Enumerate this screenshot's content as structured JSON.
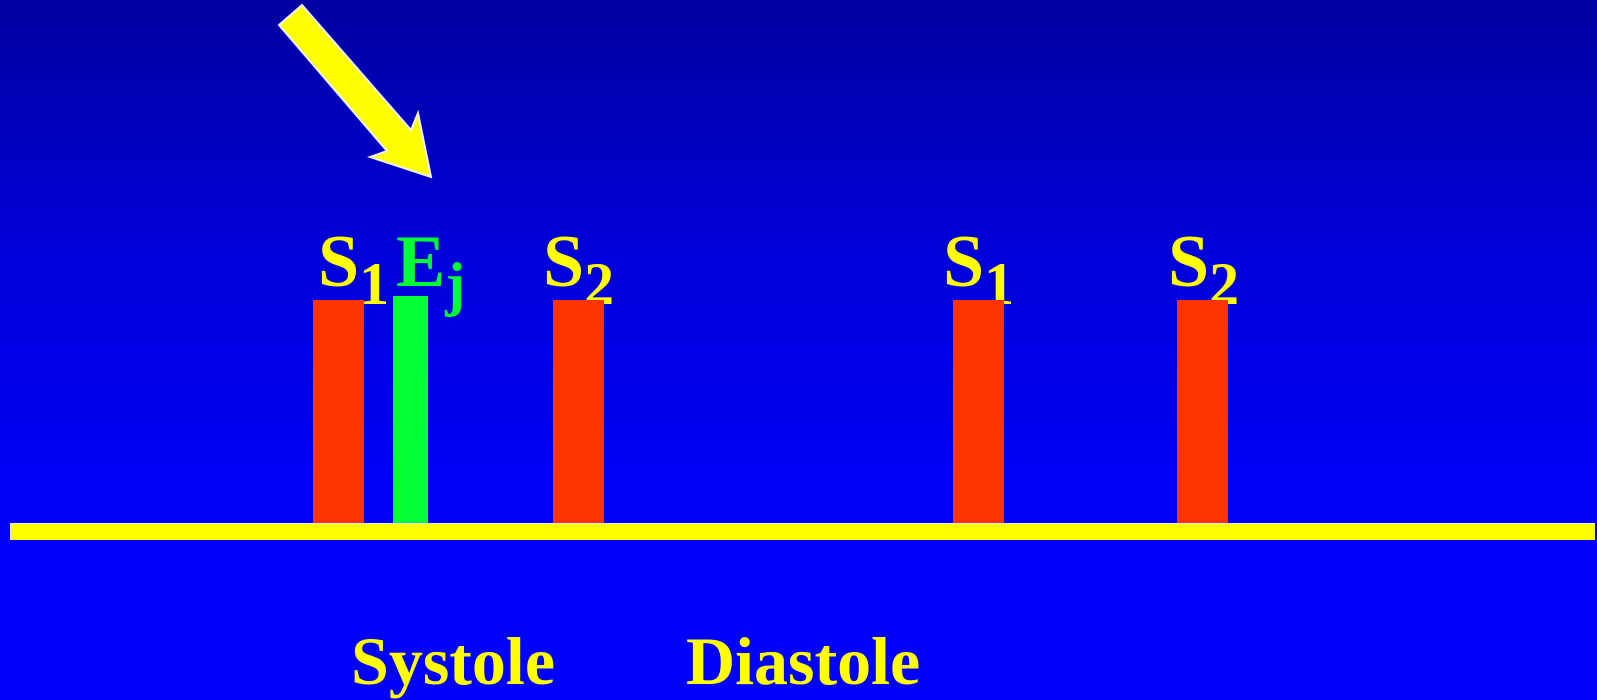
{
  "labels": {
    "s1_first": {
      "main": "S",
      "sub": "1"
    },
    "ej": {
      "main": "E",
      "sub": "j"
    },
    "s2_first": {
      "main": "S",
      "sub": "2"
    },
    "s1_second": {
      "main": "S",
      "sub": "1"
    },
    "s2_second": {
      "main": "S",
      "sub": "2"
    }
  },
  "phases": {
    "systole": "Systole",
    "diastole": "Diastole"
  },
  "colors": {
    "background": "#0000ff",
    "baseline": "#ffff00",
    "heart_sound_bar": "#ff3300",
    "ejection_bar": "#00ff33",
    "label_text": "#ffff00",
    "ejection_text": "#00ff33",
    "arrow": "#ffff00"
  },
  "icons": {
    "pointer": "arrow-down-right-icon"
  }
}
